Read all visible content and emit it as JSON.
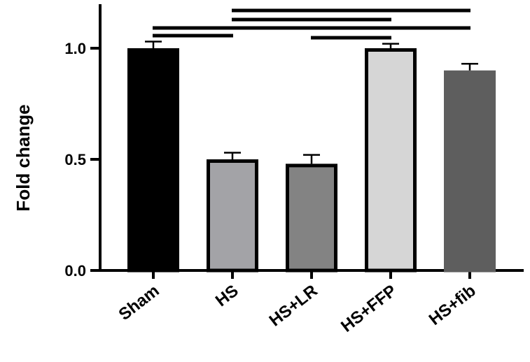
{
  "chart_data": {
    "type": "bar",
    "title": "",
    "xlabel": "",
    "ylabel": "Fold change",
    "ylim": [
      0,
      1.25
    ],
    "yticks": [
      0.0,
      0.5,
      1.0
    ],
    "ytick_labels": [
      "0.0",
      "0.5",
      "1.0"
    ],
    "categories": [
      "Sham",
      "HS",
      "HS+LR",
      "HS+FFP",
      "HS+fib"
    ],
    "values": [
      1.0,
      0.5,
      0.48,
      1.0,
      0.9
    ],
    "error": [
      0.03,
      0.03,
      0.04,
      0.02,
      0.03
    ],
    "bar_fill": [
      "#000000",
      "#a3a3a7",
      "#838383",
      "#d6d6d6",
      "#5e5e5e"
    ],
    "bar_border": [
      "#000000",
      "#000000",
      "#000000",
      "#000000",
      "#5e5e5e"
    ],
    "significance_brackets": [
      {
        "from": "HS",
        "to": "HS+fib"
      },
      {
        "from": "HS",
        "to": "HS+FFP"
      },
      {
        "from": "Sham",
        "to": "HS+LR"
      },
      {
        "from": "HS+LR",
        "to": "HS+fib"
      },
      {
        "from": "Sham",
        "to": "HS"
      },
      {
        "from": "HS+LR",
        "to": "HS+FFP"
      }
    ],
    "grid": false,
    "legend": "none"
  }
}
